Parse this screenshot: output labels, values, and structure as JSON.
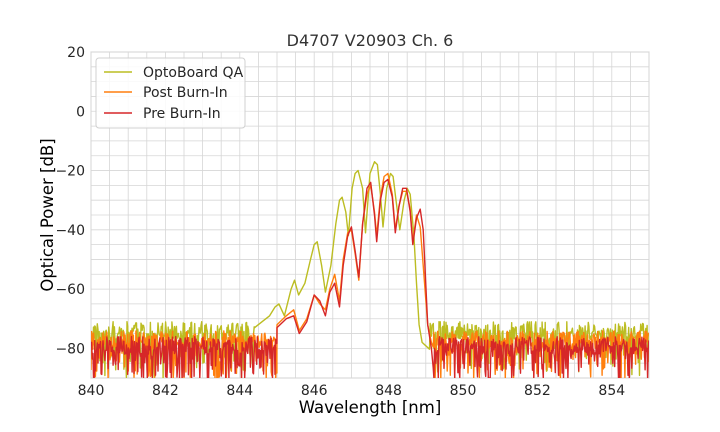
{
  "chart_data": {
    "type": "line",
    "title": "D4707 V20903 Ch. 6",
    "xlabel": "Wavelength [nm]",
    "ylabel": "Optical Power [dB]",
    "xlim": [
      840,
      855
    ],
    "ylim": [
      -90,
      20
    ],
    "xticks": [
      840,
      842,
      844,
      846,
      848,
      850,
      852,
      854
    ],
    "yticks": [
      20,
      0,
      -20,
      -40,
      -60,
      -80
    ],
    "grid": true,
    "legend_position": "top-left",
    "series": [
      {
        "name": "OptoBoard QA",
        "color": "#bcbd22",
        "noise_floor": -75,
        "noise_left_end": 844.4,
        "noise_right_start": 849.1,
        "points": [
          [
            844.4,
            -73
          ],
          [
            844.6,
            -71
          ],
          [
            844.8,
            -69
          ],
          [
            844.95,
            -66
          ],
          [
            845.05,
            -65
          ],
          [
            845.2,
            -69
          ],
          [
            845.38,
            -60
          ],
          [
            845.47,
            -57
          ],
          [
            845.58,
            -62
          ],
          [
            845.75,
            -58
          ],
          [
            845.9,
            -50
          ],
          [
            846.0,
            -45
          ],
          [
            846.08,
            -44
          ],
          [
            846.2,
            -52
          ],
          [
            846.3,
            -61
          ],
          [
            846.45,
            -52
          ],
          [
            846.58,
            -38
          ],
          [
            846.68,
            -30
          ],
          [
            846.75,
            -29
          ],
          [
            846.85,
            -34
          ],
          [
            846.92,
            -42
          ],
          [
            847.02,
            -26
          ],
          [
            847.1,
            -21
          ],
          [
            847.18,
            -20
          ],
          [
            847.3,
            -26
          ],
          [
            847.38,
            -41
          ],
          [
            847.5,
            -21
          ],
          [
            847.62,
            -17
          ],
          [
            847.7,
            -18
          ],
          [
            847.78,
            -28
          ],
          [
            847.85,
            -39
          ],
          [
            847.95,
            -26
          ],
          [
            848.05,
            -21
          ],
          [
            848.12,
            -22
          ],
          [
            848.2,
            -30
          ],
          [
            848.3,
            -40
          ],
          [
            848.42,
            -30
          ],
          [
            848.5,
            -26
          ],
          [
            848.58,
            -28
          ],
          [
            848.68,
            -42
          ],
          [
            848.75,
            -58
          ],
          [
            848.82,
            -72
          ],
          [
            848.9,
            -78
          ]
        ]
      },
      {
        "name": "Post Burn-In",
        "color": "#ff7f0e",
        "noise_floor": -78,
        "noise_left_end": 845.0,
        "noise_right_start": 849.2,
        "points": [
          [
            845.0,
            -72
          ],
          [
            845.25,
            -69
          ],
          [
            845.45,
            -67
          ],
          [
            845.6,
            -74
          ],
          [
            845.8,
            -70
          ],
          [
            846.0,
            -62
          ],
          [
            846.15,
            -65
          ],
          [
            846.3,
            -67
          ],
          [
            846.42,
            -60
          ],
          [
            846.55,
            -55
          ],
          [
            846.68,
            -64
          ],
          [
            846.78,
            -50
          ],
          [
            846.9,
            -41
          ],
          [
            847.0,
            -40
          ],
          [
            847.1,
            -48
          ],
          [
            847.2,
            -57
          ],
          [
            847.3,
            -38
          ],
          [
            847.42,
            -28
          ],
          [
            847.52,
            -25
          ],
          [
            847.62,
            -34
          ],
          [
            847.68,
            -42
          ],
          [
            847.78,
            -29
          ],
          [
            847.88,
            -22
          ],
          [
            847.98,
            -21
          ],
          [
            848.1,
            -28
          ],
          [
            848.18,
            -40
          ],
          [
            848.28,
            -32
          ],
          [
            848.38,
            -27
          ],
          [
            848.48,
            -27
          ],
          [
            848.58,
            -33
          ],
          [
            848.65,
            -44
          ],
          [
            848.75,
            -35
          ],
          [
            848.85,
            -39
          ],
          [
            848.93,
            -52
          ],
          [
            849.05,
            -72
          ],
          [
            849.15,
            -78
          ]
        ]
      },
      {
        "name": "Pre Burn-In",
        "color": "#d62728",
        "noise_floor": -80,
        "noise_left_end": 845.0,
        "noise_right_start": 849.2,
        "points": [
          [
            845.0,
            -73
          ],
          [
            845.25,
            -70
          ],
          [
            845.45,
            -69
          ],
          [
            845.6,
            -75
          ],
          [
            845.8,
            -71
          ],
          [
            846.0,
            -62
          ],
          [
            846.15,
            -64
          ],
          [
            846.3,
            -69
          ],
          [
            846.42,
            -61
          ],
          [
            846.55,
            -58
          ],
          [
            846.68,
            -66
          ],
          [
            846.78,
            -52
          ],
          [
            846.9,
            -42
          ],
          [
            847.0,
            -39
          ],
          [
            847.1,
            -47
          ],
          [
            847.2,
            -56
          ],
          [
            847.3,
            -38
          ],
          [
            847.42,
            -26
          ],
          [
            847.52,
            -24
          ],
          [
            847.62,
            -35
          ],
          [
            847.68,
            -44
          ],
          [
            847.78,
            -30
          ],
          [
            847.88,
            -24
          ],
          [
            847.98,
            -23
          ],
          [
            848.1,
            -29
          ],
          [
            848.18,
            -41
          ],
          [
            848.28,
            -32
          ],
          [
            848.38,
            -26
          ],
          [
            848.48,
            -26
          ],
          [
            848.58,
            -34
          ],
          [
            848.65,
            -45
          ],
          [
            848.75,
            -36
          ],
          [
            848.85,
            -33
          ],
          [
            848.93,
            -40
          ],
          [
            849.05,
            -72
          ],
          [
            849.15,
            -80
          ]
        ]
      }
    ]
  }
}
